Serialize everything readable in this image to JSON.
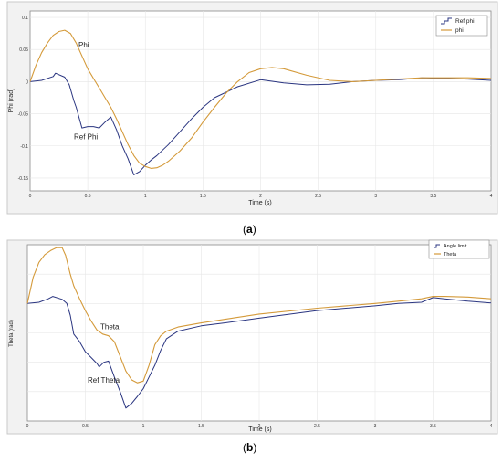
{
  "captions": {
    "a": "a",
    "b": "b"
  },
  "colors": {
    "ref": "#2a3580",
    "main": "#d49a3a",
    "frame": "#c9c9c9",
    "grid": "#e6e6e6",
    "axes_bg": "#ffffff",
    "outer_bg": "#f2f2f2"
  },
  "chart_data": [
    {
      "type": "line",
      "xlabel": "Time (s)",
      "ylabel": "Phi (rad)",
      "xlim": [
        0,
        4
      ],
      "ylim": [
        -0.17,
        0.11
      ],
      "x_ticks": [
        "0",
        "0.5",
        "1",
        "1.5",
        "2",
        "2.5",
        "3",
        "3.5",
        "4"
      ],
      "y_ticks": [
        "0.1",
        "0.05",
        "0",
        "-0.05",
        "-0.1",
        "-0.15"
      ],
      "legend": {
        "position": "top-right",
        "entries": [
          "Ref phi",
          "phi"
        ]
      },
      "annotations": [
        {
          "text": "Phi",
          "x": 0.42,
          "y": 0.053
        },
        {
          "text": "Ref Phi",
          "x": 0.38,
          "y": -0.09
        }
      ],
      "grid": true,
      "series": [
        {
          "name": "Ref phi",
          "x": [
            0,
            0.1,
            0.2,
            0.22,
            0.3,
            0.34,
            0.38,
            0.4,
            0.45,
            0.5,
            0.55,
            0.6,
            0.65,
            0.7,
            0.75,
            0.8,
            0.85,
            0.9,
            0.95,
            1.0,
            1.05,
            1.1,
            1.2,
            1.3,
            1.4,
            1.5,
            1.6,
            1.8,
            2.0,
            2.2,
            2.4,
            2.6,
            2.8,
            3.0,
            3.2,
            3.4,
            3.6,
            3.8,
            4.0
          ],
          "y": [
            0,
            0.002,
            0.008,
            0.013,
            0.007,
            -0.005,
            -0.03,
            -0.04,
            -0.072,
            -0.07,
            -0.07,
            -0.072,
            -0.063,
            -0.055,
            -0.075,
            -0.1,
            -0.12,
            -0.145,
            -0.14,
            -0.13,
            -0.122,
            -0.115,
            -0.098,
            -0.078,
            -0.058,
            -0.04,
            -0.025,
            -0.008,
            0.003,
            -0.002,
            -0.005,
            -0.004,
            0.0,
            0.002,
            0.003,
            0.006,
            0.005,
            0.004,
            0.002
          ]
        },
        {
          "name": "phi",
          "x": [
            0,
            0.05,
            0.1,
            0.15,
            0.2,
            0.25,
            0.3,
            0.35,
            0.4,
            0.45,
            0.5,
            0.55,
            0.6,
            0.65,
            0.7,
            0.75,
            0.8,
            0.85,
            0.9,
            0.95,
            1.0,
            1.05,
            1.1,
            1.15,
            1.2,
            1.3,
            1.4,
            1.5,
            1.6,
            1.7,
            1.8,
            1.9,
            2.0,
            2.1,
            2.2,
            2.4,
            2.6,
            2.8,
            3.0,
            3.2,
            3.4,
            3.6,
            3.8,
            4.0
          ],
          "y": [
            0,
            0.025,
            0.045,
            0.06,
            0.072,
            0.078,
            0.08,
            0.075,
            0.06,
            0.04,
            0.02,
            0.005,
            -0.01,
            -0.025,
            -0.04,
            -0.058,
            -0.078,
            -0.098,
            -0.115,
            -0.127,
            -0.132,
            -0.135,
            -0.134,
            -0.13,
            -0.124,
            -0.108,
            -0.088,
            -0.063,
            -0.04,
            -0.018,
            0.0,
            0.014,
            0.02,
            0.022,
            0.02,
            0.01,
            0.002,
            0.0,
            0.002,
            0.004,
            0.006,
            0.006,
            0.006,
            0.005
          ]
        }
      ]
    },
    {
      "type": "line",
      "xlabel": "Time (s)",
      "ylabel": "Theta (rad)",
      "xlim": [
        0,
        4
      ],
      "ylim": [
        -0.2,
        0.1
      ],
      "x_ticks": [
        "0",
        "0.5",
        "1",
        "1.5",
        "2",
        "2.5",
        "3",
        "3.5",
        "4"
      ],
      "legend": {
        "position": "top-right",
        "entries": [
          "Angle limit",
          "Theta"
        ]
      },
      "annotations": [
        {
          "text": "Theta",
          "x": 0.63,
          "y": -0.044
        },
        {
          "text": "Ref Theta",
          "x": 0.52,
          "y": -0.135
        }
      ],
      "grid": true,
      "series": [
        {
          "name": "Angle limit",
          "x": [
            0,
            0.1,
            0.18,
            0.22,
            0.3,
            0.34,
            0.37,
            0.4,
            0.45,
            0.5,
            0.55,
            0.6,
            0.62,
            0.66,
            0.7,
            0.75,
            0.8,
            0.85,
            0.9,
            0.95,
            1.0,
            1.05,
            1.1,
            1.15,
            1.2,
            1.3,
            1.5,
            1.7,
            2.0,
            2.5,
            3.0,
            3.2,
            3.4,
            3.5,
            3.6,
            3.8,
            4.0
          ],
          "y": [
            0,
            0.002,
            0.008,
            0.012,
            0.007,
            0.0,
            -0.02,
            -0.052,
            -0.065,
            -0.082,
            -0.092,
            -0.102,
            -0.108,
            -0.1,
            -0.098,
            -0.125,
            -0.15,
            -0.178,
            -0.17,
            -0.158,
            -0.145,
            -0.125,
            -0.105,
            -0.08,
            -0.06,
            -0.047,
            -0.038,
            -0.033,
            -0.025,
            -0.012,
            -0.004,
            0.0,
            0.002,
            0.01,
            0.008,
            0.004,
            0.001
          ]
        },
        {
          "name": "Theta",
          "x": [
            0,
            0.05,
            0.1,
            0.15,
            0.2,
            0.25,
            0.3,
            0.33,
            0.37,
            0.4,
            0.45,
            0.5,
            0.55,
            0.6,
            0.65,
            0.7,
            0.75,
            0.8,
            0.85,
            0.9,
            0.95,
            1.0,
            1.05,
            1.1,
            1.15,
            1.2,
            1.3,
            1.5,
            1.7,
            2.0,
            2.5,
            3.0,
            3.2,
            3.4,
            3.5,
            3.6,
            3.8,
            4.0
          ],
          "y": [
            0,
            0.045,
            0.07,
            0.083,
            0.09,
            0.095,
            0.095,
            0.082,
            0.05,
            0.03,
            0.008,
            -0.012,
            -0.03,
            -0.045,
            -0.052,
            -0.055,
            -0.065,
            -0.09,
            -0.115,
            -0.13,
            -0.135,
            -0.132,
            -0.105,
            -0.07,
            -0.055,
            -0.047,
            -0.04,
            -0.033,
            -0.027,
            -0.018,
            -0.008,
            0.0,
            0.004,
            0.008,
            0.012,
            0.012,
            0.011,
            0.008
          ]
        }
      ]
    }
  ]
}
